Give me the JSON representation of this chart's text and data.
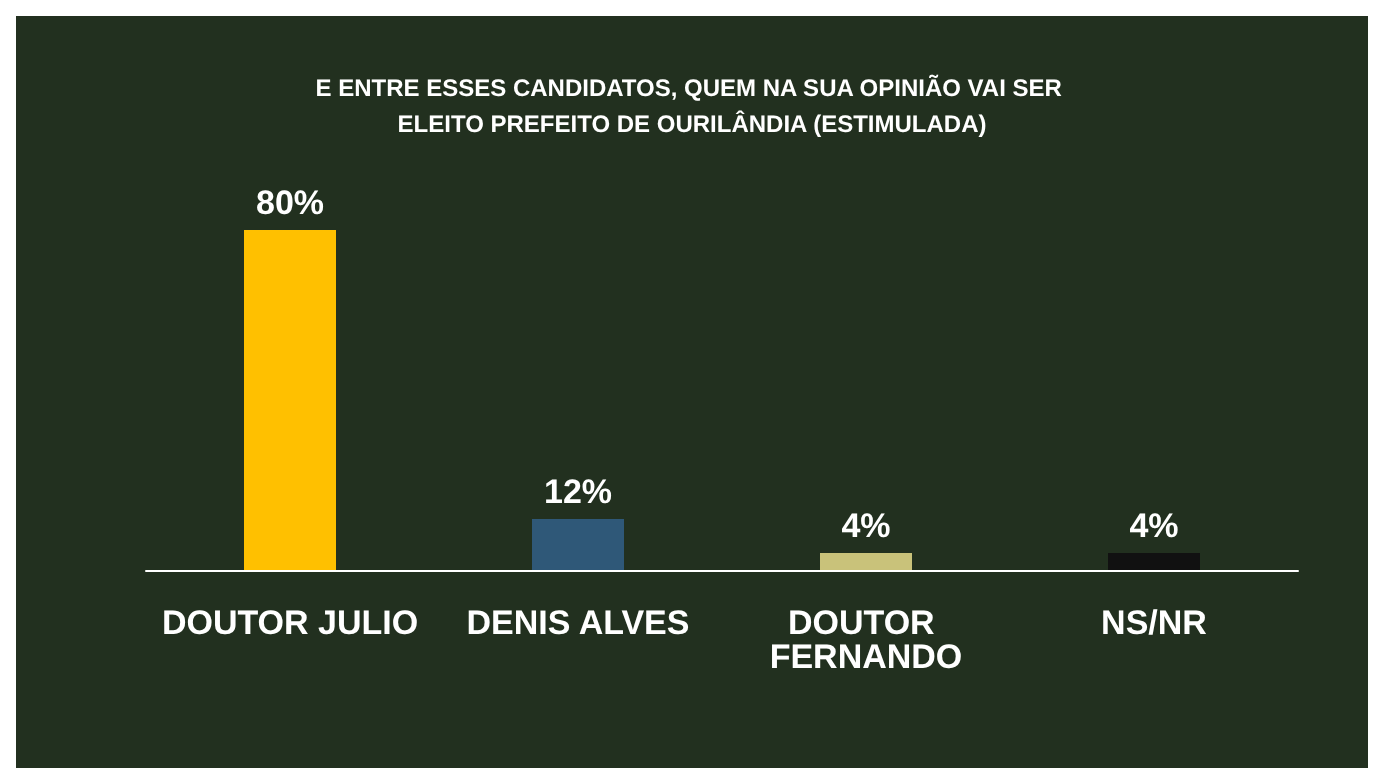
{
  "chart_data": {
    "type": "bar",
    "title": "E ENTRE ESSES CANDIDATOS, QUEM NA SUA OPINIÃO VAI SER ELEITO PREFEITO DE OURILÂNDIA (ESTIMULADA)",
    "categories": [
      "DOUTOR JULIO",
      "DENIS ALVES",
      "DOUTOR FERNANDO",
      "NS/NR"
    ],
    "values": [
      80,
      12,
      4,
      4
    ],
    "colors": [
      "#ffc000",
      "#2f5878",
      "#c9c27a",
      "#111111"
    ],
    "value_labels": [
      "80%",
      "12%",
      "4%",
      "4%"
    ]
  }
}
